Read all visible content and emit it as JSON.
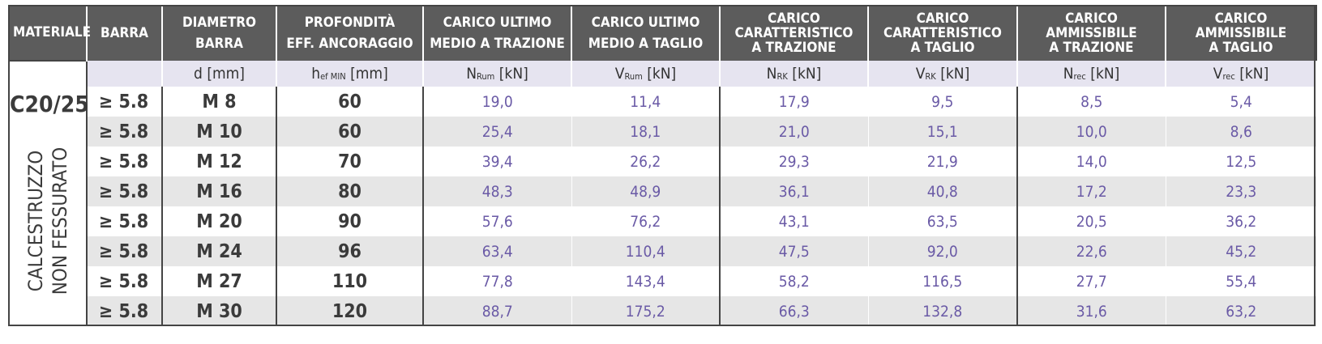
{
  "headers": [
    [
      "MATERIALE"
    ],
    [
      "BARRA"
    ],
    [
      "DIAMETRO",
      "BARRA"
    ],
    [
      "PROFONDITÀ",
      "EFF. ANCORAGGIO"
    ],
    [
      "CARICO ULTIMO",
      "MEDIO A TRAZIONE"
    ],
    [
      "CARICO ULTIMO",
      "MEDIO A TAGLIO"
    ],
    [
      "CARICO",
      "CARATTERISTICO",
      "A TRAZIONE"
    ],
    [
      "CARICO",
      "CARATTERISTICO",
      "A TAGLIO"
    ],
    [
      "CARICO",
      "AMMISSIBILE",
      "A TRAZIONE"
    ],
    [
      "CARICO",
      "AMMISSIBILE",
      "A TAGLIO"
    ]
  ],
  "units": [
    {
      "main": "",
      "sub": "",
      "unit": ""
    },
    {
      "main": "",
      "sub": "",
      "unit": ""
    },
    {
      "main": "d",
      "sub": "",
      "unit": "[mm]"
    },
    {
      "main": "h",
      "sub": "ef MIN",
      "unit": "[mm]"
    },
    {
      "main": "N",
      "sub": "Rum",
      "unit": "[kN]"
    },
    {
      "main": "V",
      "sub": "Rum",
      "unit": "[kN]"
    },
    {
      "main": "N",
      "sub": "RK",
      "unit": "[kN]"
    },
    {
      "main": "V",
      "sub": "RK",
      "unit": "[kN]"
    },
    {
      "main": "N",
      "sub": "rec",
      "unit": "[kN]"
    },
    {
      "main": "V",
      "sub": "rec",
      "unit": "[kN]"
    }
  ],
  "material": {
    "grade": "C20/25",
    "line1": "CALCESTRUZZO",
    "line2": "NON FESSURATO"
  },
  "rows": [
    {
      "barra": "≥ 5.8",
      "diam": "M 8",
      "prof": "60",
      "vals": [
        "19,0",
        "11,4",
        "17,9",
        "9,5",
        "8,5",
        "5,4"
      ]
    },
    {
      "barra": "≥ 5.8",
      "diam": "M 10",
      "prof": "60",
      "vals": [
        "25,4",
        "18,1",
        "21,0",
        "15,1",
        "10,0",
        "8,6"
      ]
    },
    {
      "barra": "≥ 5.8",
      "diam": "M 12",
      "prof": "70",
      "vals": [
        "39,4",
        "26,2",
        "29,3",
        "21,9",
        "14,0",
        "12,5"
      ]
    },
    {
      "barra": "≥ 5.8",
      "diam": "M 16",
      "prof": "80",
      "vals": [
        "48,3",
        "48,9",
        "36,1",
        "40,8",
        "17,2",
        "23,3"
      ]
    },
    {
      "barra": "≥ 5.8",
      "diam": "M 20",
      "prof": "90",
      "vals": [
        "57,6",
        "76,2",
        "43,1",
        "63,5",
        "20,5",
        "36,2"
      ]
    },
    {
      "barra": "≥ 5.8",
      "diam": "M 24",
      "prof": "96",
      "vals": [
        "63,4",
        "110,4",
        "47,5",
        "92,0",
        "22,6",
        "45,2"
      ]
    },
    {
      "barra": "≥ 5.8",
      "diam": "M 27",
      "prof": "110",
      "vals": [
        "77,8",
        "143,4",
        "58,2",
        "116,5",
        "27,7",
        "55,4"
      ]
    },
    {
      "barra": "≥ 5.8",
      "diam": "M 30",
      "prof": "120",
      "vals": [
        "88,7",
        "175,2",
        "66,3",
        "132,8",
        "31,6",
        "63,2"
      ]
    }
  ]
}
